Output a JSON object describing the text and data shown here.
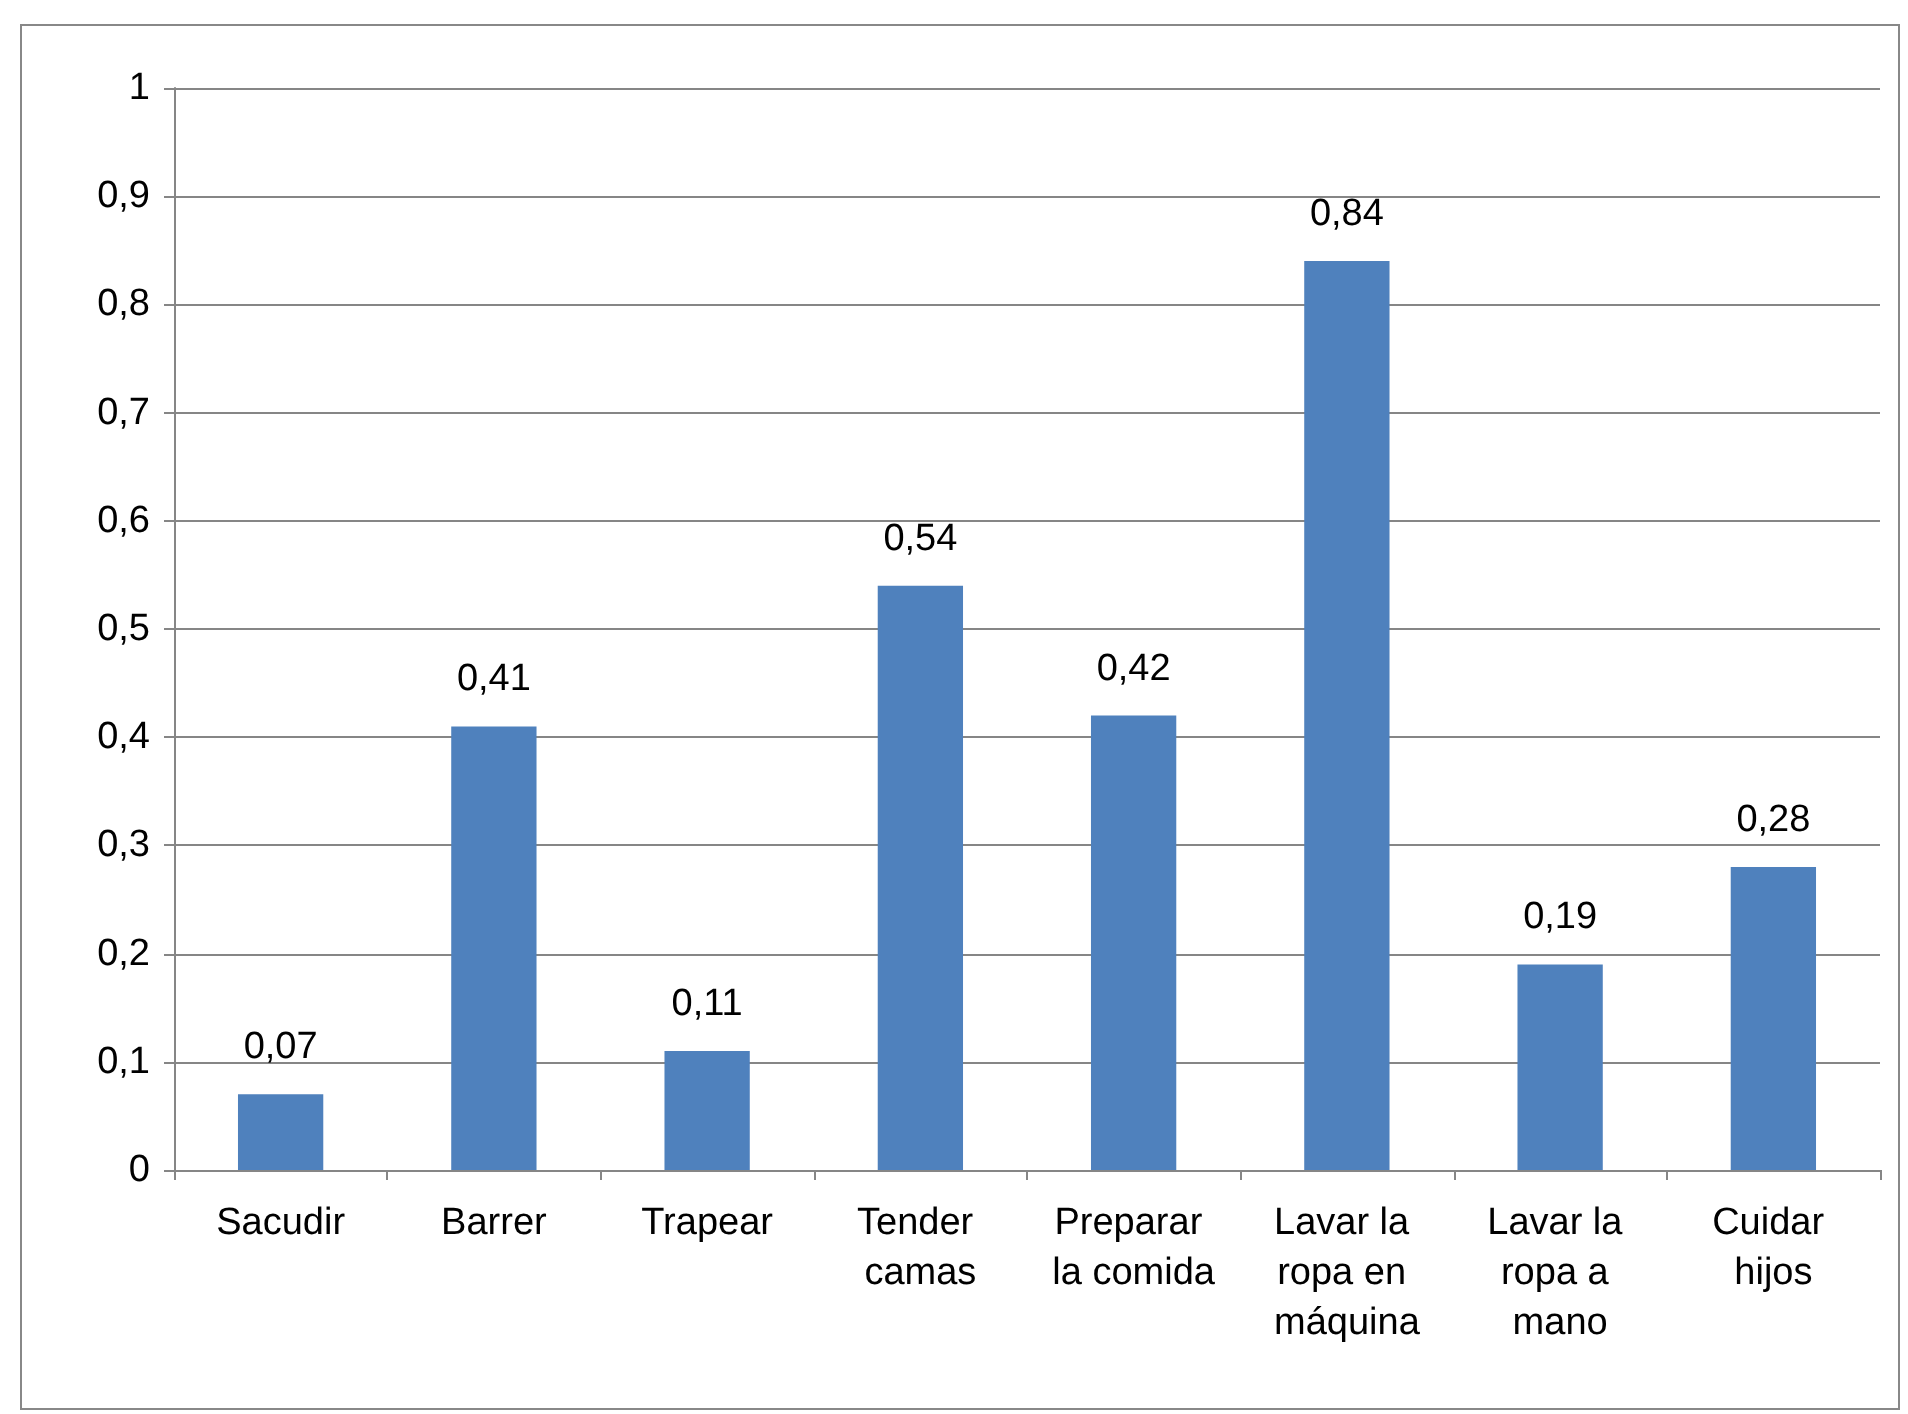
{
  "chart_data": {
    "type": "bar",
    "categories": [
      "Sacudir",
      "Barrer",
      "Trapear",
      "Tender camas",
      "Preparar la comida",
      "Lavar la ropa en máquina",
      "Lavar la ropa a mano",
      "Cuidar hijos"
    ],
    "values": [
      0.07,
      0.41,
      0.11,
      0.54,
      0.42,
      0.84,
      0.19,
      0.28
    ],
    "value_labels": [
      "0,07",
      "0,41",
      "0,11",
      "0,54",
      "0,42",
      "0,84",
      "0,19",
      "0,28"
    ],
    "color": "#4f81bd",
    "ylim": [
      0,
      1
    ],
    "yticks": [
      0,
      {
        "value": 0.1,
        "label": "0,1"
      },
      {
        "value": 0.2,
        "label": "0,2"
      },
      {
        "value": 0.3,
        "label": "0,3"
      },
      {
        "value": 0.4,
        "label": "0,4"
      },
      {
        "value": 0.5,
        "label": "0,5"
      },
      {
        "value": 0.6,
        "label": "0,6"
      },
      {
        "value": 0.7,
        "label": "0,7"
      },
      {
        "value": 0.8,
        "label": "0,8"
      },
      {
        "value": 0.9,
        "label": "0,9"
      },
      1
    ],
    "grid": "y"
  }
}
